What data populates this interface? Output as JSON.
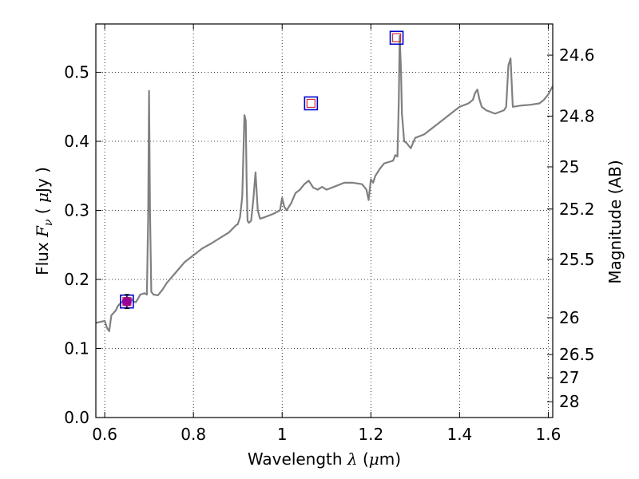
{
  "chart_data": {
    "type": "line",
    "xlabel": {
      "prefix": "Wavelength  ",
      "symbol": "λ",
      "unit_open": " (",
      "unit_mu": "μ",
      "unit_rest": "m)"
    },
    "ylabel": {
      "prefix": "Flux  ",
      "symbol": "F",
      "subscript": "ν",
      "unit_open": "  ( ",
      "unit_mu": "μ",
      "unit_rest": "Jy )"
    },
    "y2label": "Magnitude (AB)",
    "xlim": [
      0.58,
      1.61
    ],
    "ylim": [
      0.0,
      0.57
    ],
    "grid": true,
    "colors": {
      "spectrum": "#808080",
      "outer_marker": "#0000cc",
      "inner_marker": "#cc3333",
      "photometry_point": "#990099",
      "grid": "#000000"
    },
    "x_ticks": [
      {
        "value": 0.6,
        "label": "0.6"
      },
      {
        "value": 0.8,
        "label": "0.8"
      },
      {
        "value": 1.0,
        "label": "1"
      },
      {
        "value": 1.2,
        "label": "1.2"
      },
      {
        "value": 1.4,
        "label": "1.4"
      },
      {
        "value": 1.6,
        "label": "1.6"
      }
    ],
    "y_ticks": [
      {
        "value": 0.0,
        "label": "0.0"
      },
      {
        "value": 0.1,
        "label": "0.1"
      },
      {
        "value": 0.2,
        "label": "0.2"
      },
      {
        "value": 0.3,
        "label": "0.3"
      },
      {
        "value": 0.4,
        "label": "0.4"
      },
      {
        "value": 0.5,
        "label": "0.5"
      }
    ],
    "y2_ticks": [
      {
        "value": 24.6,
        "label": "24.6"
      },
      {
        "value": 24.8,
        "label": "24.8"
      },
      {
        "value": 25.0,
        "label": "25"
      },
      {
        "value": 25.2,
        "label": "25.2"
      },
      {
        "value": 25.5,
        "label": "25.5"
      },
      {
        "value": 26.0,
        "label": "26"
      },
      {
        "value": 26.5,
        "label": "26.5"
      },
      {
        "value": 27.0,
        "label": "27"
      },
      {
        "value": 28.0,
        "label": "28"
      }
    ],
    "spectrum": {
      "x": [
        0.58,
        0.6,
        0.605,
        0.61,
        0.615,
        0.625,
        0.63,
        0.64,
        0.65,
        0.655,
        0.66,
        0.665,
        0.67,
        0.675,
        0.68,
        0.69,
        0.695,
        0.698,
        0.7,
        0.702,
        0.705,
        0.71,
        0.72,
        0.73,
        0.74,
        0.76,
        0.78,
        0.8,
        0.82,
        0.84,
        0.86,
        0.88,
        0.895,
        0.9,
        0.905,
        0.91,
        0.915,
        0.918,
        0.92,
        0.922,
        0.925,
        0.93,
        0.935,
        0.94,
        0.945,
        0.95,
        0.96,
        0.98,
        0.995,
        1.0,
        1.005,
        1.01,
        1.02,
        1.03,
        1.04,
        1.05,
        1.06,
        1.07,
        1.08,
        1.09,
        1.1,
        1.12,
        1.14,
        1.16,
        1.18,
        1.19,
        1.195,
        1.2,
        1.205,
        1.21,
        1.22,
        1.23,
        1.24,
        1.25,
        1.255,
        1.26,
        1.263,
        1.265,
        1.268,
        1.27,
        1.275,
        1.28,
        1.29,
        1.3,
        1.32,
        1.34,
        1.36,
        1.38,
        1.4,
        1.42,
        1.43,
        1.435,
        1.44,
        1.445,
        1.45,
        1.46,
        1.48,
        1.5,
        1.505,
        1.51,
        1.515,
        1.52,
        1.54,
        1.56,
        1.58,
        1.59,
        1.6,
        1.61
      ],
      "y": [
        0.137,
        0.14,
        0.13,
        0.125,
        0.148,
        0.155,
        0.162,
        0.168,
        0.165,
        0.17,
        0.172,
        0.168,
        0.167,
        0.172,
        0.178,
        0.18,
        0.178,
        0.29,
        0.473,
        0.3,
        0.182,
        0.178,
        0.177,
        0.185,
        0.195,
        0.21,
        0.225,
        0.235,
        0.245,
        0.252,
        0.26,
        0.268,
        0.278,
        0.28,
        0.29,
        0.32,
        0.438,
        0.43,
        0.34,
        0.285,
        0.282,
        0.285,
        0.315,
        0.355,
        0.3,
        0.288,
        0.29,
        0.295,
        0.3,
        0.318,
        0.305,
        0.3,
        0.31,
        0.325,
        0.33,
        0.338,
        0.343,
        0.333,
        0.33,
        0.334,
        0.33,
        0.335,
        0.34,
        0.34,
        0.338,
        0.33,
        0.315,
        0.345,
        0.34,
        0.35,
        0.36,
        0.368,
        0.37,
        0.372,
        0.38,
        0.378,
        0.46,
        0.553,
        0.5,
        0.44,
        0.4,
        0.398,
        0.39,
        0.405,
        0.41,
        0.42,
        0.43,
        0.44,
        0.45,
        0.455,
        0.46,
        0.47,
        0.475,
        0.46,
        0.45,
        0.445,
        0.44,
        0.445,
        0.45,
        0.51,
        0.52,
        0.45,
        0.452,
        0.453,
        0.455,
        0.46,
        0.468,
        0.48
      ],
      "y_note": ""
    },
    "photometry": [
      {
        "x": 0.65,
        "y": 0.168
      },
      {
        "x": 1.065,
        "y": 0.455
      },
      {
        "x": 1.258,
        "y": 0.55
      }
    ],
    "measured_point": {
      "x": 0.65,
      "y": 0.168,
      "yerr": 0.01
    }
  }
}
